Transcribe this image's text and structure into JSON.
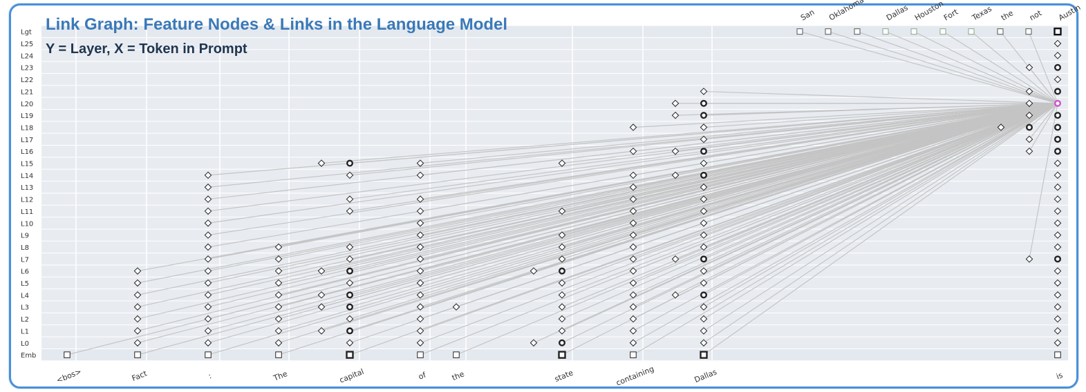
{
  "title": "Link Graph: Feature Nodes & Links in the Language Model",
  "subtitle": "Y = Layer, X = Token in Prompt",
  "colors": {
    "highlight": "#d04fd0",
    "link": "#c4c4c4",
    "band": "#e8ecf1",
    "node": "#222222",
    "logit_box": "#8aa58a"
  },
  "chart_data": {
    "type": "attribution-graph",
    "rows": [
      "Lgt",
      "L25",
      "L24",
      "L23",
      "L22",
      "L21",
      "L20",
      "L19",
      "L18",
      "L17",
      "L16",
      "L15",
      "L14",
      "L13",
      "L12",
      "L11",
      "L10",
      "L9",
      "L8",
      "L7",
      "L6",
      "L5",
      "L4",
      "L3",
      "L2",
      "L1",
      "L0",
      "Emb"
    ],
    "tokens": [
      "<bos>",
      "Fact",
      ":",
      "The",
      "capital",
      "of",
      "the",
      "state",
      "containing",
      "Dallas",
      "is"
    ],
    "logits": [
      "San",
      "Oklahoma",
      "",
      "Dallas",
      "Houston",
      "Fort",
      "Texas",
      "the",
      "not",
      "Austin"
    ],
    "nodes": [
      {
        "token": "<bos>",
        "layer": "Emb",
        "shape": "box"
      },
      {
        "token": "Fact",
        "layer": "Emb",
        "shape": "box"
      },
      {
        "token": ":",
        "layer": "Emb",
        "shape": "box"
      },
      {
        "token": "The",
        "layer": "Emb",
        "shape": "box"
      },
      {
        "token": "capital",
        "layer": "Emb",
        "shape": "box",
        "bold": true
      },
      {
        "token": "of",
        "layer": "Emb",
        "shape": "box"
      },
      {
        "token": "the",
        "layer": "Emb",
        "shape": "box"
      },
      {
        "token": "state",
        "layer": "Emb",
        "shape": "box",
        "bold": true
      },
      {
        "token": "containing",
        "layer": "Emb",
        "shape": "box"
      },
      {
        "token": "Dallas",
        "layer": "Emb",
        "shape": "box",
        "bold": true
      },
      {
        "token": "is",
        "layer": "Emb",
        "shape": "box"
      },
      {
        "token": "Fact",
        "layer": "L6",
        "shape": "diamond"
      },
      {
        "token": "Fact",
        "layer": "L5",
        "shape": "diamond"
      },
      {
        "token": "Fact",
        "layer": "L4",
        "shape": "diamond"
      },
      {
        "token": "Fact",
        "layer": "L3",
        "shape": "diamond"
      },
      {
        "token": "Fact",
        "layer": "L2",
        "shape": "diamond"
      },
      {
        "token": "Fact",
        "layer": "L1",
        "shape": "diamond"
      },
      {
        "token": "Fact",
        "layer": "L0",
        "shape": "diamond"
      },
      {
        "token": ":",
        "layer": "L14",
        "shape": "diamond"
      },
      {
        "token": ":",
        "layer": "L13",
        "shape": "diamond"
      },
      {
        "token": ":",
        "layer": "L12",
        "shape": "diamond"
      },
      {
        "token": ":",
        "layer": "L11",
        "shape": "diamond"
      },
      {
        "token": ":",
        "layer": "L10",
        "shape": "diamond"
      },
      {
        "token": ":",
        "layer": "L9",
        "shape": "diamond"
      },
      {
        "token": ":",
        "layer": "L8",
        "shape": "diamond"
      },
      {
        "token": ":",
        "layer": "L7",
        "shape": "diamond"
      },
      {
        "token": ":",
        "layer": "L6",
        "shape": "diamond"
      },
      {
        "token": ":",
        "layer": "L5",
        "shape": "diamond"
      },
      {
        "token": ":",
        "layer": "L4",
        "shape": "diamond"
      },
      {
        "token": ":",
        "layer": "L3",
        "shape": "diamond"
      },
      {
        "token": ":",
        "layer": "L2",
        "shape": "diamond"
      },
      {
        "token": ":",
        "layer": "L1",
        "shape": "diamond"
      },
      {
        "token": ":",
        "layer": "L0",
        "shape": "diamond"
      },
      {
        "token": "The",
        "layer": "L8",
        "shape": "diamond"
      },
      {
        "token": "The",
        "layer": "L7",
        "shape": "diamond"
      },
      {
        "token": "The",
        "layer": "L6",
        "shape": "diamond"
      },
      {
        "token": "The",
        "layer": "L5",
        "shape": "diamond"
      },
      {
        "token": "The",
        "layer": "L4",
        "shape": "diamond"
      },
      {
        "token": "The",
        "layer": "L3",
        "shape": "diamond"
      },
      {
        "token": "The",
        "layer": "L2",
        "shape": "diamond"
      },
      {
        "token": "The",
        "layer": "L1",
        "shape": "diamond"
      },
      {
        "token": "The",
        "layer": "L0",
        "shape": "diamond"
      },
      {
        "token": "capital",
        "layer": "L15",
        "shape": "diamond",
        "side": -1
      },
      {
        "token": "capital",
        "layer": "L6",
        "shape": "diamond",
        "side": -1
      },
      {
        "token": "capital",
        "layer": "L4",
        "shape": "diamond",
        "side": -1
      },
      {
        "token": "capital",
        "layer": "L3",
        "shape": "diamond",
        "side": -1
      },
      {
        "token": "capital",
        "layer": "L1",
        "shape": "diamond",
        "side": -1
      },
      {
        "token": "capital",
        "layer": "L15",
        "shape": "circle",
        "bold": true
      },
      {
        "token": "capital",
        "layer": "L14",
        "shape": "diamond"
      },
      {
        "token": "capital",
        "layer": "L12",
        "shape": "diamond"
      },
      {
        "token": "capital",
        "layer": "L11",
        "shape": "diamond"
      },
      {
        "token": "capital",
        "layer": "L8",
        "shape": "diamond"
      },
      {
        "token": "capital",
        "layer": "L7",
        "shape": "diamond"
      },
      {
        "token": "capital",
        "layer": "L6",
        "shape": "circle",
        "bold": true
      },
      {
        "token": "capital",
        "layer": "L5",
        "shape": "diamond"
      },
      {
        "token": "capital",
        "layer": "L4",
        "shape": "circle",
        "bold": true
      },
      {
        "token": "capital",
        "layer": "L3",
        "shape": "circle",
        "bold": true
      },
      {
        "token": "capital",
        "layer": "L2",
        "shape": "diamond"
      },
      {
        "token": "capital",
        "layer": "L1",
        "shape": "circle",
        "bold": true
      },
      {
        "token": "capital",
        "layer": "L0",
        "shape": "diamond"
      },
      {
        "token": "of",
        "layer": "L15",
        "shape": "diamond"
      },
      {
        "token": "of",
        "layer": "L14",
        "shape": "diamond"
      },
      {
        "token": "of",
        "layer": "L12",
        "shape": "diamond"
      },
      {
        "token": "of",
        "layer": "L11",
        "shape": "diamond"
      },
      {
        "token": "of",
        "layer": "L10",
        "shape": "diamond"
      },
      {
        "token": "of",
        "layer": "L9",
        "shape": "diamond"
      },
      {
        "token": "of",
        "layer": "L8",
        "shape": "diamond"
      },
      {
        "token": "of",
        "layer": "L7",
        "shape": "diamond"
      },
      {
        "token": "of",
        "layer": "L6",
        "shape": "diamond"
      },
      {
        "token": "of",
        "layer": "L5",
        "shape": "diamond"
      },
      {
        "token": "of",
        "layer": "L4",
        "shape": "diamond"
      },
      {
        "token": "of",
        "layer": "L3",
        "shape": "diamond"
      },
      {
        "token": "of",
        "layer": "L2",
        "shape": "diamond"
      },
      {
        "token": "of",
        "layer": "L1",
        "shape": "diamond"
      },
      {
        "token": "of",
        "layer": "L0",
        "shape": "diamond"
      },
      {
        "token": "the",
        "layer": "L3",
        "shape": "diamond"
      },
      {
        "token": "state",
        "layer": "L6",
        "shape": "diamond",
        "side": -1
      },
      {
        "token": "state",
        "layer": "L0",
        "shape": "diamond",
        "side": -1
      },
      {
        "token": "state",
        "layer": "L15",
        "shape": "diamond"
      },
      {
        "token": "state",
        "layer": "L11",
        "shape": "diamond"
      },
      {
        "token": "state",
        "layer": "L9",
        "shape": "diamond"
      },
      {
        "token": "state",
        "layer": "L8",
        "shape": "diamond"
      },
      {
        "token": "state",
        "layer": "L7",
        "shape": "diamond"
      },
      {
        "token": "state",
        "layer": "L6",
        "shape": "circle",
        "bold": true
      },
      {
        "token": "state",
        "layer": "L5",
        "shape": "diamond"
      },
      {
        "token": "state",
        "layer": "L4",
        "shape": "diamond"
      },
      {
        "token": "state",
        "layer": "L3",
        "shape": "diamond"
      },
      {
        "token": "state",
        "layer": "L2",
        "shape": "diamond"
      },
      {
        "token": "state",
        "layer": "L1",
        "shape": "diamond"
      },
      {
        "token": "state",
        "layer": "L0",
        "shape": "circle",
        "bold": true
      },
      {
        "token": "containing",
        "layer": "L18",
        "shape": "diamond"
      },
      {
        "token": "containing",
        "layer": "L16",
        "shape": "diamond"
      },
      {
        "token": "containing",
        "layer": "L14",
        "shape": "diamond"
      },
      {
        "token": "containing",
        "layer": "L13",
        "shape": "diamond"
      },
      {
        "token": "containing",
        "layer": "L12",
        "shape": "diamond"
      },
      {
        "token": "containing",
        "layer": "L11",
        "shape": "diamond"
      },
      {
        "token": "containing",
        "layer": "L10",
        "shape": "diamond"
      },
      {
        "token": "containing",
        "layer": "L9",
        "shape": "diamond"
      },
      {
        "token": "containing",
        "layer": "L8",
        "shape": "diamond"
      },
      {
        "token": "containing",
        "layer": "L7",
        "shape": "diamond"
      },
      {
        "token": "containing",
        "layer": "L6",
        "shape": "diamond"
      },
      {
        "token": "containing",
        "layer": "L5",
        "shape": "diamond"
      },
      {
        "token": "containing",
        "layer": "L4",
        "shape": "diamond"
      },
      {
        "token": "containing",
        "layer": "L3",
        "shape": "diamond"
      },
      {
        "token": "containing",
        "layer": "L2",
        "shape": "diamond"
      },
      {
        "token": "containing",
        "layer": "L1",
        "shape": "diamond"
      },
      {
        "token": "containing",
        "layer": "L0",
        "shape": "diamond"
      },
      {
        "token": "Dallas",
        "layer": "L20",
        "shape": "diamond",
        "side": -1
      },
      {
        "token": "Dallas",
        "layer": "L19",
        "shape": "diamond",
        "side": -1
      },
      {
        "token": "Dallas",
        "layer": "L16",
        "shape": "diamond",
        "side": -1
      },
      {
        "token": "Dallas",
        "layer": "L14",
        "shape": "diamond",
        "side": -1
      },
      {
        "token": "Dallas",
        "layer": "L7",
        "shape": "diamond",
        "side": -1
      },
      {
        "token": "Dallas",
        "layer": "L4",
        "shape": "diamond",
        "side": -1
      },
      {
        "token": "Dallas",
        "layer": "L21",
        "shape": "diamond"
      },
      {
        "token": "Dallas",
        "layer": "L20",
        "shape": "circle",
        "bold": true
      },
      {
        "token": "Dallas",
        "layer": "L19",
        "shape": "circle",
        "bold": true
      },
      {
        "token": "Dallas",
        "layer": "L18",
        "shape": "diamond"
      },
      {
        "token": "Dallas",
        "layer": "L17",
        "shape": "diamond"
      },
      {
        "token": "Dallas",
        "layer": "L16",
        "shape": "circle",
        "bold": true
      },
      {
        "token": "Dallas",
        "layer": "L15",
        "shape": "diamond"
      },
      {
        "token": "Dallas",
        "layer": "L14",
        "shape": "circle",
        "bold": true
      },
      {
        "token": "Dallas",
        "layer": "L13",
        "shape": "diamond"
      },
      {
        "token": "Dallas",
        "layer": "L12",
        "shape": "diamond"
      },
      {
        "token": "Dallas",
        "layer": "L11",
        "shape": "diamond"
      },
      {
        "token": "Dallas",
        "layer": "L10",
        "shape": "diamond"
      },
      {
        "token": "Dallas",
        "layer": "L9",
        "shape": "diamond"
      },
      {
        "token": "Dallas",
        "layer": "L8",
        "shape": "diamond"
      },
      {
        "token": "Dallas",
        "layer": "L7",
        "shape": "circle",
        "bold": true
      },
      {
        "token": "Dallas",
        "layer": "L6",
        "shape": "diamond"
      },
      {
        "token": "Dallas",
        "layer": "L5",
        "shape": "diamond"
      },
      {
        "token": "Dallas",
        "layer": "L4",
        "shape": "circle",
        "bold": true
      },
      {
        "token": "Dallas",
        "layer": "L3",
        "shape": "diamond"
      },
      {
        "token": "Dallas",
        "layer": "L2",
        "shape": "diamond"
      },
      {
        "token": "Dallas",
        "layer": "L1",
        "shape": "diamond"
      },
      {
        "token": "Dallas",
        "layer": "L0",
        "shape": "diamond"
      },
      {
        "token": "is",
        "layer": "L23",
        "shape": "diamond",
        "side": -1
      },
      {
        "token": "is",
        "layer": "L21",
        "shape": "diamond",
        "side": -1
      },
      {
        "token": "is",
        "layer": "L20",
        "shape": "diamond",
        "side": -1
      },
      {
        "token": "is",
        "layer": "L19",
        "shape": "diamond",
        "side": -1
      },
      {
        "token": "is",
        "layer": "L18",
        "shape": "diamond",
        "side": -2
      },
      {
        "token": "is",
        "layer": "L18",
        "shape": "circle",
        "bold": true,
        "side": -1
      },
      {
        "token": "is",
        "layer": "L17",
        "shape": "diamond",
        "side": -1
      },
      {
        "token": "is",
        "layer": "L16",
        "shape": "diamond",
        "side": -1
      },
      {
        "token": "is",
        "layer": "L7",
        "shape": "diamond",
        "side": -1
      },
      {
        "token": "is",
        "layer": "L25",
        "shape": "diamond"
      },
      {
        "token": "is",
        "layer": "L24",
        "shape": "diamond"
      },
      {
        "token": "is",
        "layer": "L23",
        "shape": "circle",
        "bold": true
      },
      {
        "token": "is",
        "layer": "L22",
        "shape": "diamond"
      },
      {
        "token": "is",
        "layer": "L21",
        "shape": "circle",
        "bold": true
      },
      {
        "token": "is",
        "layer": "L20",
        "shape": "circle",
        "bold": true,
        "highlight": true
      },
      {
        "token": "is",
        "layer": "L19",
        "shape": "circle",
        "bold": true
      },
      {
        "token": "is",
        "layer": "L18",
        "shape": "circle",
        "bold": true
      },
      {
        "token": "is",
        "layer": "L17",
        "shape": "circle",
        "bold": true
      },
      {
        "token": "is",
        "layer": "L16",
        "shape": "circle",
        "bold": true
      },
      {
        "token": "is",
        "layer": "L15",
        "shape": "diamond"
      },
      {
        "token": "is",
        "layer": "L14",
        "shape": "diamond"
      },
      {
        "token": "is",
        "layer": "L13",
        "shape": "diamond"
      },
      {
        "token": "is",
        "layer": "L12",
        "shape": "diamond"
      },
      {
        "token": "is",
        "layer": "L11",
        "shape": "diamond"
      },
      {
        "token": "is",
        "layer": "L10",
        "shape": "diamond"
      },
      {
        "token": "is",
        "layer": "L9",
        "shape": "diamond"
      },
      {
        "token": "is",
        "layer": "L8",
        "shape": "diamond"
      },
      {
        "token": "is",
        "layer": "L7",
        "shape": "circle",
        "bold": true
      },
      {
        "token": "is",
        "layer": "L6",
        "shape": "diamond"
      },
      {
        "token": "is",
        "layer": "L5",
        "shape": "diamond"
      },
      {
        "token": "is",
        "layer": "L4",
        "shape": "diamond"
      },
      {
        "token": "is",
        "layer": "L3",
        "shape": "diamond"
      },
      {
        "token": "is",
        "layer": "L2",
        "shape": "diamond"
      },
      {
        "token": "is",
        "layer": "L1",
        "shape": "diamond"
      },
      {
        "token": "is",
        "layer": "L0",
        "shape": "diamond"
      }
    ]
  }
}
